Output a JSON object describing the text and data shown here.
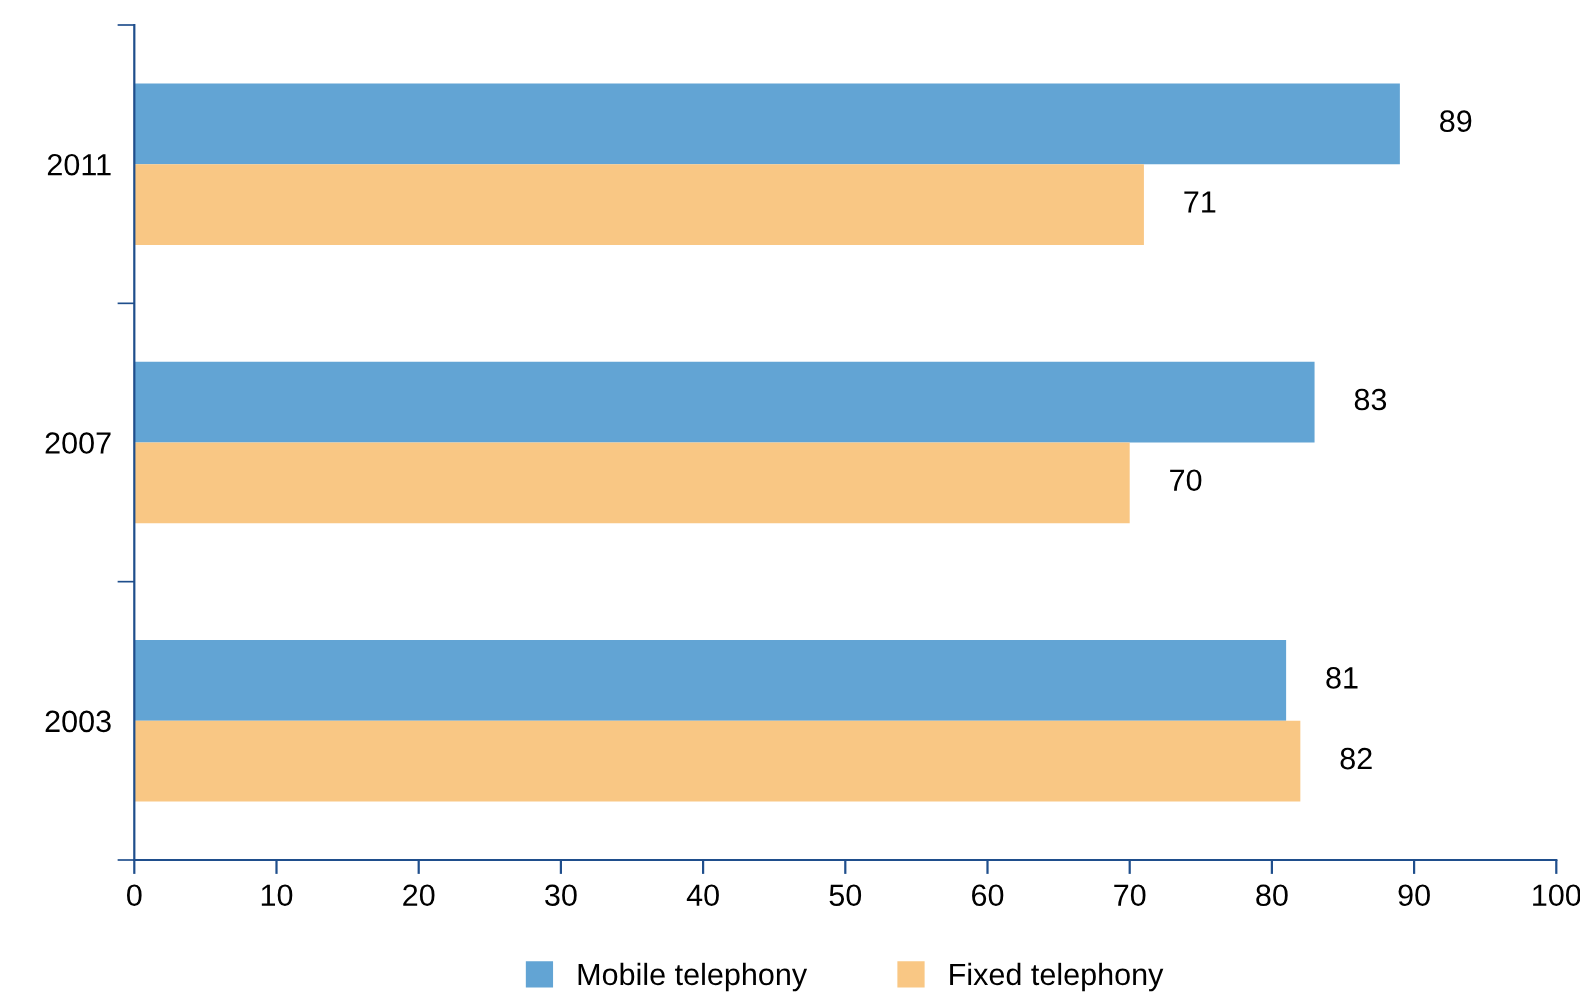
{
  "chart_data": {
    "type": "bar",
    "orientation": "horizontal",
    "categories": [
      "2011",
      "2007",
      "2003"
    ],
    "series": [
      {
        "name": "Mobile telephony",
        "color": "#62a4d4",
        "values": [
          89,
          83,
          81
        ]
      },
      {
        "name": "Fixed telephony",
        "color": "#f9c784",
        "values": [
          71,
          70,
          82
        ]
      }
    ],
    "xlim": [
      0,
      100
    ],
    "xticks": [
      0,
      10,
      20,
      30,
      40,
      50,
      60,
      70,
      80,
      90,
      100
    ],
    "data_labels": true,
    "legend": "bottom",
    "grid": false
  }
}
